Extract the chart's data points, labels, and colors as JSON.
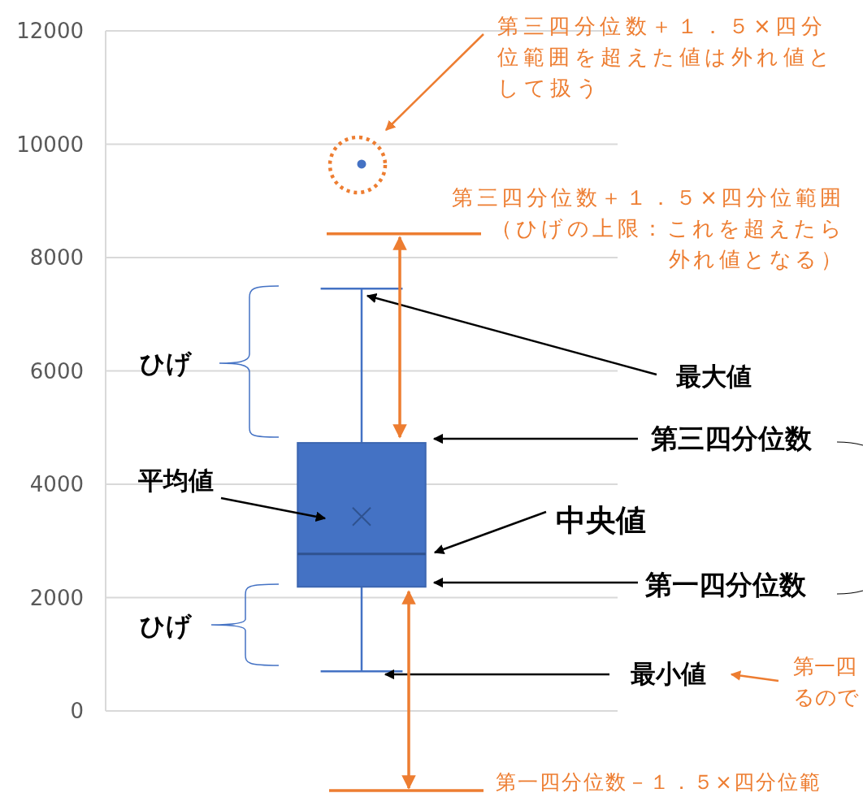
{
  "chart_data": {
    "type": "box",
    "categories": [
      null
    ],
    "series": [
      {
        "color": "#4472c4",
        "boxes": [
          {
            "low": 700,
            "q1": 2190,
            "median": 2770,
            "q3": 4730,
            "high": 7450,
            "mean": 3430,
            "outliers": [
              9650
            ]
          }
        ]
      }
    ],
    "ylim": [
      0,
      12000
    ],
    "yticks": [
      0,
      2000,
      4000,
      6000,
      8000,
      10000,
      12000
    ],
    "grid": "y",
    "ref_lines": [
      {
        "axis": "y",
        "value": 8420,
        "label": "第三四分位数＋１．５×四分位範囲（ひげの上限：これを超えたら外れ値となる）",
        "color": "#ed7d31"
      }
    ],
    "annotations": [
      "第三四分位数＋１．５×四分位範囲を超えた値は外れ値として扱う",
      "最大値",
      "第三四分位数",
      "中央値",
      "第一四分位数",
      "最小値",
      "平均値",
      "ひげ",
      "ひげ",
      "第一四",
      "るので",
      "第一四分位数－１．５×四分位範"
    ]
  }
}
